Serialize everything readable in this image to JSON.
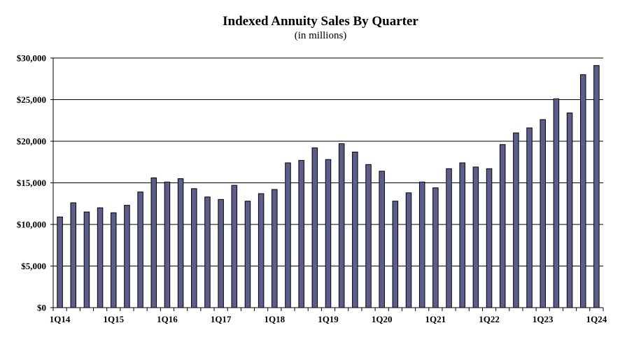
{
  "chart_data": {
    "type": "bar",
    "title": "Indexed Annuity Sales By Quarter",
    "subtitle": "(in millions)",
    "categories": [
      "1Q14",
      "2Q14",
      "3Q14",
      "4Q14",
      "1Q15",
      "2Q15",
      "3Q15",
      "4Q15",
      "1Q16",
      "2Q16",
      "3Q16",
      "4Q16",
      "1Q17",
      "2Q17",
      "3Q17",
      "4Q17",
      "1Q18",
      "2Q18",
      "3Q18",
      "4Q18",
      "1Q19",
      "2Q19",
      "3Q19",
      "4Q19",
      "1Q20",
      "2Q20",
      "3Q20",
      "4Q20",
      "1Q21",
      "2Q21",
      "3Q21",
      "4Q21",
      "1Q22",
      "2Q22",
      "3Q22",
      "4Q22",
      "1Q23",
      "2Q23",
      "3Q23",
      "4Q23",
      "1Q24"
    ],
    "x_tick_labels": [
      "1Q14",
      "1Q15",
      "1Q16",
      "1Q17",
      "1Q18",
      "1Q19",
      "1Q20",
      "1Q21",
      "1Q22",
      "1Q23",
      "1Q24"
    ],
    "values": [
      10900,
      12600,
      11500,
      12000,
      11400,
      12300,
      13900,
      15600,
      15100,
      15500,
      14300,
      13300,
      13000,
      14700,
      12800,
      13700,
      14200,
      17400,
      17700,
      19200,
      17800,
      19700,
      18700,
      17200,
      16400,
      12800,
      13800,
      15100,
      14400,
      16700,
      17400,
      16900,
      16700,
      19600,
      21000,
      21600,
      22600,
      25100,
      23400,
      28000,
      29100
    ],
    "ylim": [
      0,
      30000
    ],
    "y_ticks": [
      0,
      5000,
      10000,
      15000,
      20000,
      25000,
      30000
    ],
    "y_tick_labels": [
      "$0",
      "$5,000",
      "$10,000",
      "$15,000",
      "$20,000",
      "$25,000",
      "$30,000"
    ],
    "grid": true,
    "bar_color": "#5d5d8b",
    "bar_edge_color": "#000000"
  }
}
